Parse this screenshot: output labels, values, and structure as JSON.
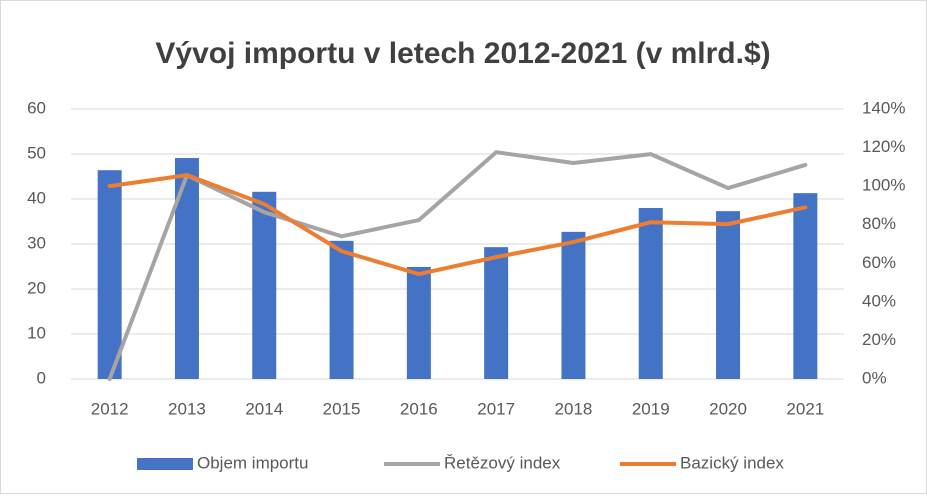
{
  "chart_data": {
    "type": "bar_line",
    "title": "Vývoj importu v letech 2012-2021 (v mlrd.$)",
    "categories": [
      "2012",
      "2013",
      "2014",
      "2015",
      "2016",
      "2017",
      "2018",
      "2019",
      "2020",
      "2021"
    ],
    "series": [
      {
        "name": "Objem importu",
        "type": "bar",
        "color": "#4472c4",
        "values": [
          46.4,
          49.1,
          41.6,
          30.7,
          24.9,
          29.3,
          32.7,
          38,
          37.3,
          41.3
        ]
      },
      {
        "name": "Řetězový index",
        "type": "line",
        "axis": "y2",
        "color": "#a5a5a5",
        "values": [
          0,
          105.7,
          86.5,
          74,
          82.4,
          117.6,
          112,
          116.6,
          99,
          111
        ]
      },
      {
        "name": "Bazický index",
        "type": "line",
        "axis": "y2",
        "color": "#ed7d31",
        "values": [
          100,
          105.7,
          90.7,
          66.3,
          54.4,
          63.2,
          71,
          81.3,
          80.3,
          89
        ]
      }
    ],
    "ylim": [
      0,
      60
    ],
    "yticks": [
      0,
      10,
      20,
      30,
      40,
      50,
      60
    ],
    "y2lim": [
      0,
      140
    ],
    "y2ticks": [
      {
        "value": 0,
        "label": "0%"
      },
      {
        "value": 20,
        "label": "20%"
      },
      {
        "value": 40,
        "label": "40%"
      },
      {
        "value": 60,
        "label": "60%"
      },
      {
        "value": 80,
        "label": "80%"
      },
      {
        "value": 100,
        "label": "100%"
      },
      {
        "value": 120,
        "label": "120%"
      },
      {
        "value": 140,
        "label": "140%"
      }
    ],
    "grid": true,
    "legend": "bottom"
  }
}
